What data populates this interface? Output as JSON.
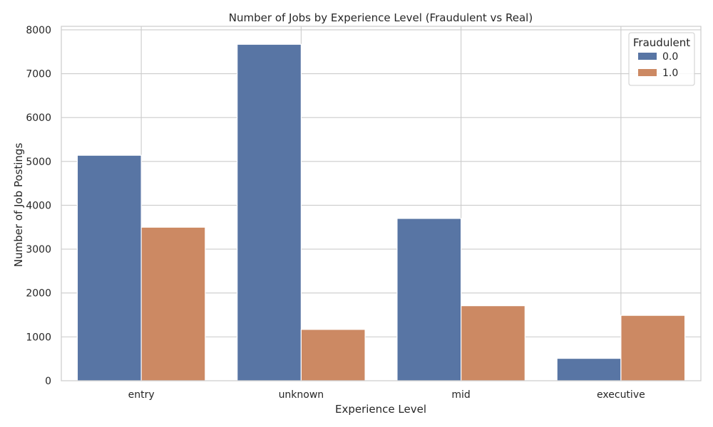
{
  "chart_data": {
    "type": "bar",
    "title": "Number of Jobs by Experience Level (Fraudulent vs Real)",
    "xlabel": "Experience Level",
    "ylabel": "Number of Job Postings",
    "categories": [
      "entry",
      "unknown",
      "mid",
      "executive"
    ],
    "series": [
      {
        "name": "0.0",
        "values": [
          5140,
          7670,
          3700,
          510
        ],
        "color": "#5875a4"
      },
      {
        "name": "1.0",
        "values": [
          3500,
          1170,
          1710,
          1490
        ],
        "color": "#cc8963"
      }
    ],
    "ylim": [
      0,
      8080
    ],
    "yticks": [
      0,
      1000,
      2000,
      3000,
      4000,
      5000,
      6000,
      7000,
      8000
    ],
    "grid": true,
    "legend": {
      "title": "Fraudulent",
      "placement": "top-right"
    }
  }
}
